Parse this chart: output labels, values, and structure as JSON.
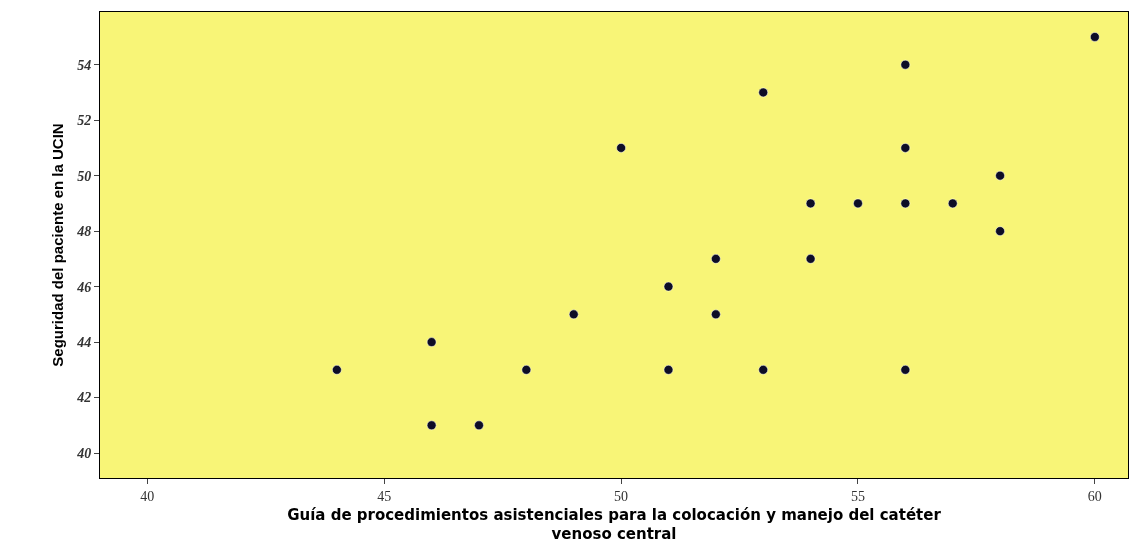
{
  "chart_data": {
    "type": "scatter",
    "xlabel": "Guía de procedimientos asistenciales para la colocación y manejo del catéter venoso central",
    "ylabel": "Seguridad del paciente en la UCIN",
    "x": [
      44,
      46,
      46,
      47,
      48,
      49,
      50,
      51,
      51,
      52,
      52,
      53,
      53,
      54,
      54,
      55,
      56,
      56,
      56,
      56,
      57,
      58,
      58,
      60
    ],
    "values": [
      43,
      44,
      41,
      41,
      43,
      45,
      51,
      46,
      43,
      47,
      45,
      53,
      43,
      49,
      47,
      49,
      54,
      51,
      49,
      43,
      49,
      50,
      48,
      55
    ],
    "color": "#0d0d26",
    "marker": "circle",
    "xlim": [
      39,
      60.7
    ],
    "xticks": [
      40,
      45,
      50,
      55,
      60
    ],
    "ylim": [
      39.1,
      55.9
    ],
    "yticks": [
      40,
      42,
      44,
      46,
      48,
      50,
      52,
      54
    ],
    "grid": false
  }
}
